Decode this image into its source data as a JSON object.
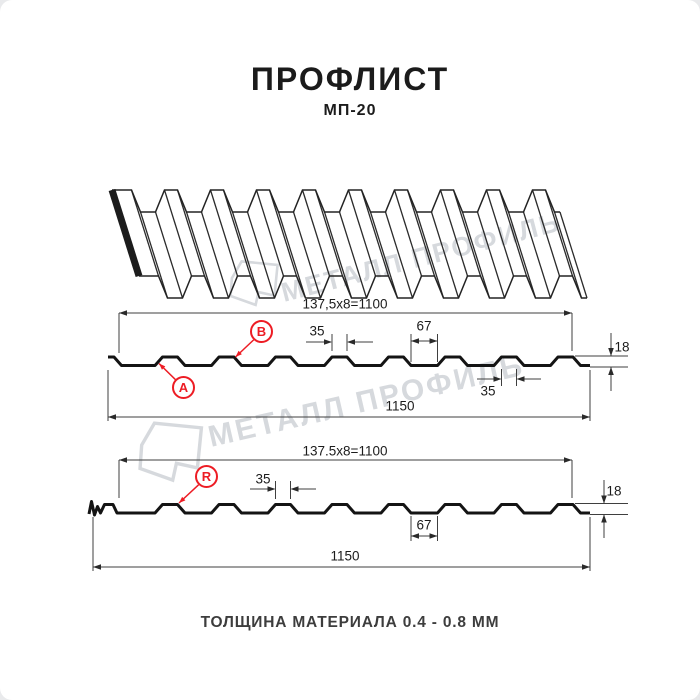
{
  "page": {
    "title": "ПРОФЛИСТ",
    "subtitle": "МП-20",
    "footer": "ТОЛЩИНА МАТЕРИАЛА 0.4 - 0.8 ММ"
  },
  "watermark": {
    "text": "МЕТАЛЛ ПРОФИЛЬ"
  },
  "colors": {
    "red": "#ed1c24",
    "ink": "#1a1a1a",
    "dim_line": "#3f3f3f",
    "watermark": "#d6d9dd"
  },
  "drawing1": {
    "width_formula": "137,5x8=1100",
    "rib_top_width": "35",
    "valley_width": "67",
    "bottom_rib_width": "35",
    "height": "18",
    "full_width": "1150",
    "marker_a": "A",
    "marker_b": "B"
  },
  "drawing2": {
    "width_formula": "137.5x8=1100",
    "rib_top_width": "35",
    "valley_width": "67",
    "height": "18",
    "full_width": "1150",
    "marker_r": "R"
  }
}
